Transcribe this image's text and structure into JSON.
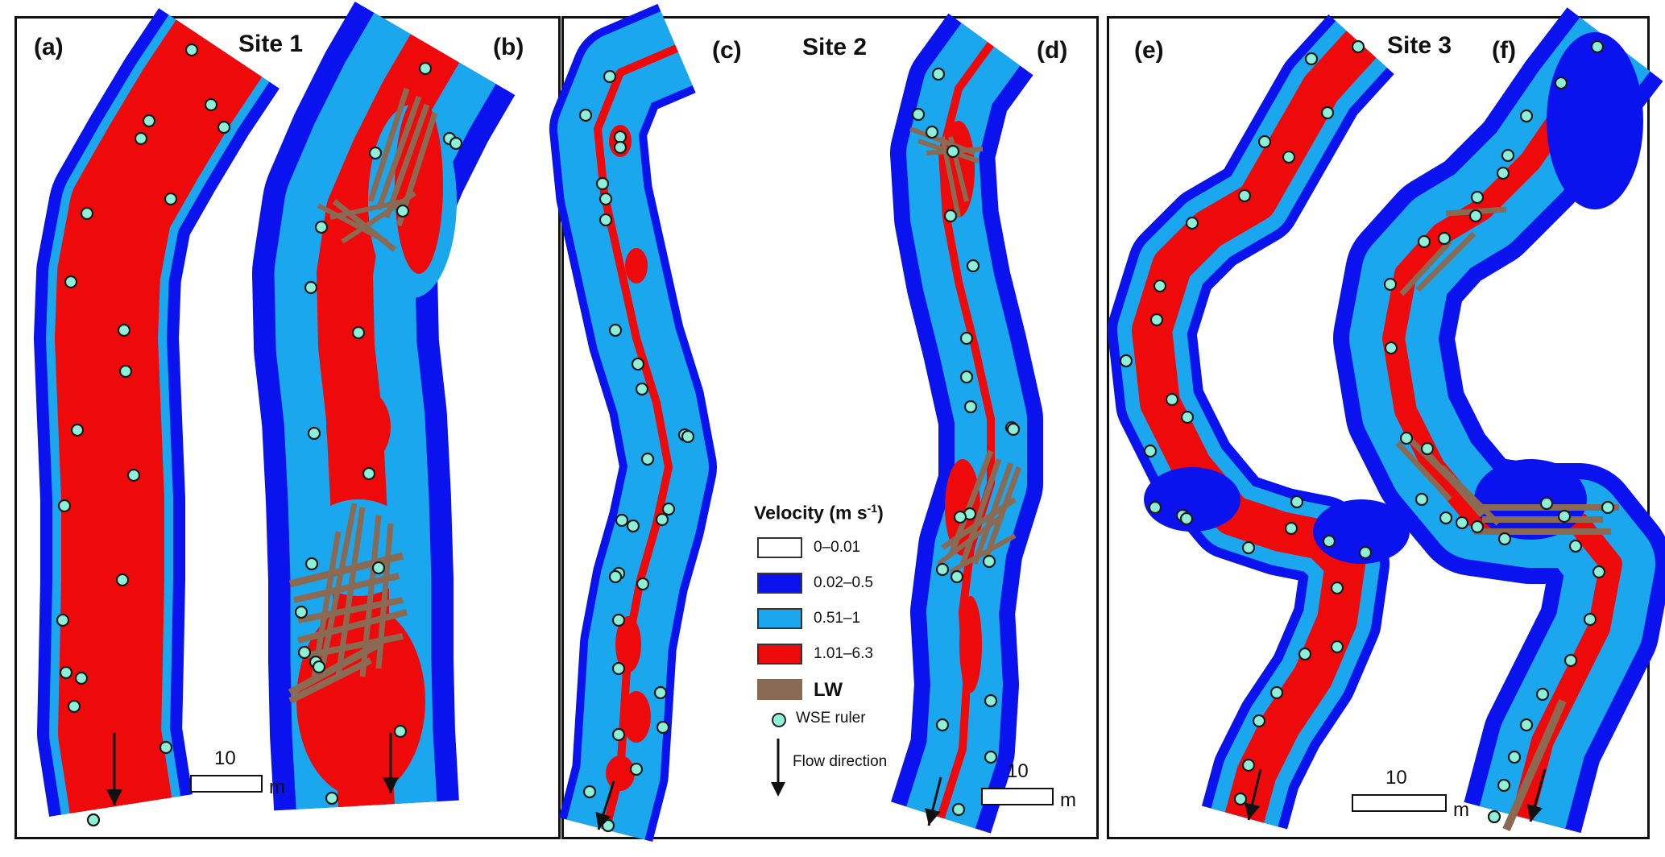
{
  "panels": [
    "(a)",
    "(b)",
    "(c)",
    "(d)",
    "(e)",
    "(f)"
  ],
  "sites": [
    "Site 1",
    "Site 2",
    "Site 3"
  ],
  "legend": {
    "title": "Velocity (m s",
    "title_sup": "-1",
    "title_end": ")",
    "classes": [
      {
        "label": "0–0.01",
        "color": "#ffffff"
      },
      {
        "label": "0.02–0.5",
        "color": "#0a12ee"
      },
      {
        "label": "0.51–1",
        "color": "#1aa7ee"
      },
      {
        "label": "1.01–6.3",
        "color": "#ee0a0a"
      }
    ],
    "lw_label": "LW",
    "lw_color": "#8b6a54",
    "ruler_label": "WSE ruler",
    "ruler_color": "#8ff0d8",
    "flow_label": "Flow direction"
  },
  "scalebar": {
    "value": "10",
    "unit": "m"
  }
}
